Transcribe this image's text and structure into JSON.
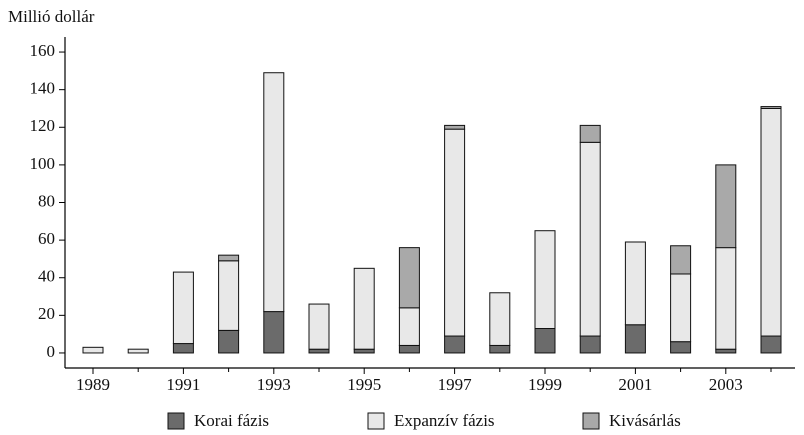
{
  "chart_data": {
    "type": "bar",
    "stacked": true,
    "y_label": "Millió dollár",
    "categories": [
      "1989",
      null,
      "1991",
      null,
      "1993",
      null,
      "1995",
      null,
      "1997",
      null,
      "1999",
      null,
      "2001",
      null,
      "2003",
      null
    ],
    "series": [
      {
        "name": "Korai fázis",
        "color": "#6b6b6b",
        "values": [
          0,
          0,
          5,
          12,
          22,
          2,
          2,
          4,
          9,
          4,
          13,
          9,
          15,
          6,
          2,
          9
        ]
      },
      {
        "name": "Expanzív fázis",
        "color": "#e8e8e8",
        "values": [
          3,
          2,
          38,
          37,
          127,
          24,
          43,
          20,
          110,
          28,
          52,
          103,
          44,
          36,
          54,
          121
        ]
      },
      {
        "name": "Kivásárlás",
        "color": "#a9a9a9",
        "values": [
          0,
          0,
          0,
          3,
          0,
          0,
          0,
          32,
          2,
          0,
          0,
          9,
          0,
          15,
          44,
          1
        ]
      }
    ],
    "ylim": [
      -8,
      168
    ],
    "yticks": [
      0,
      20,
      40,
      60,
      80,
      100,
      120,
      140,
      160
    ],
    "legend": "bottom"
  }
}
